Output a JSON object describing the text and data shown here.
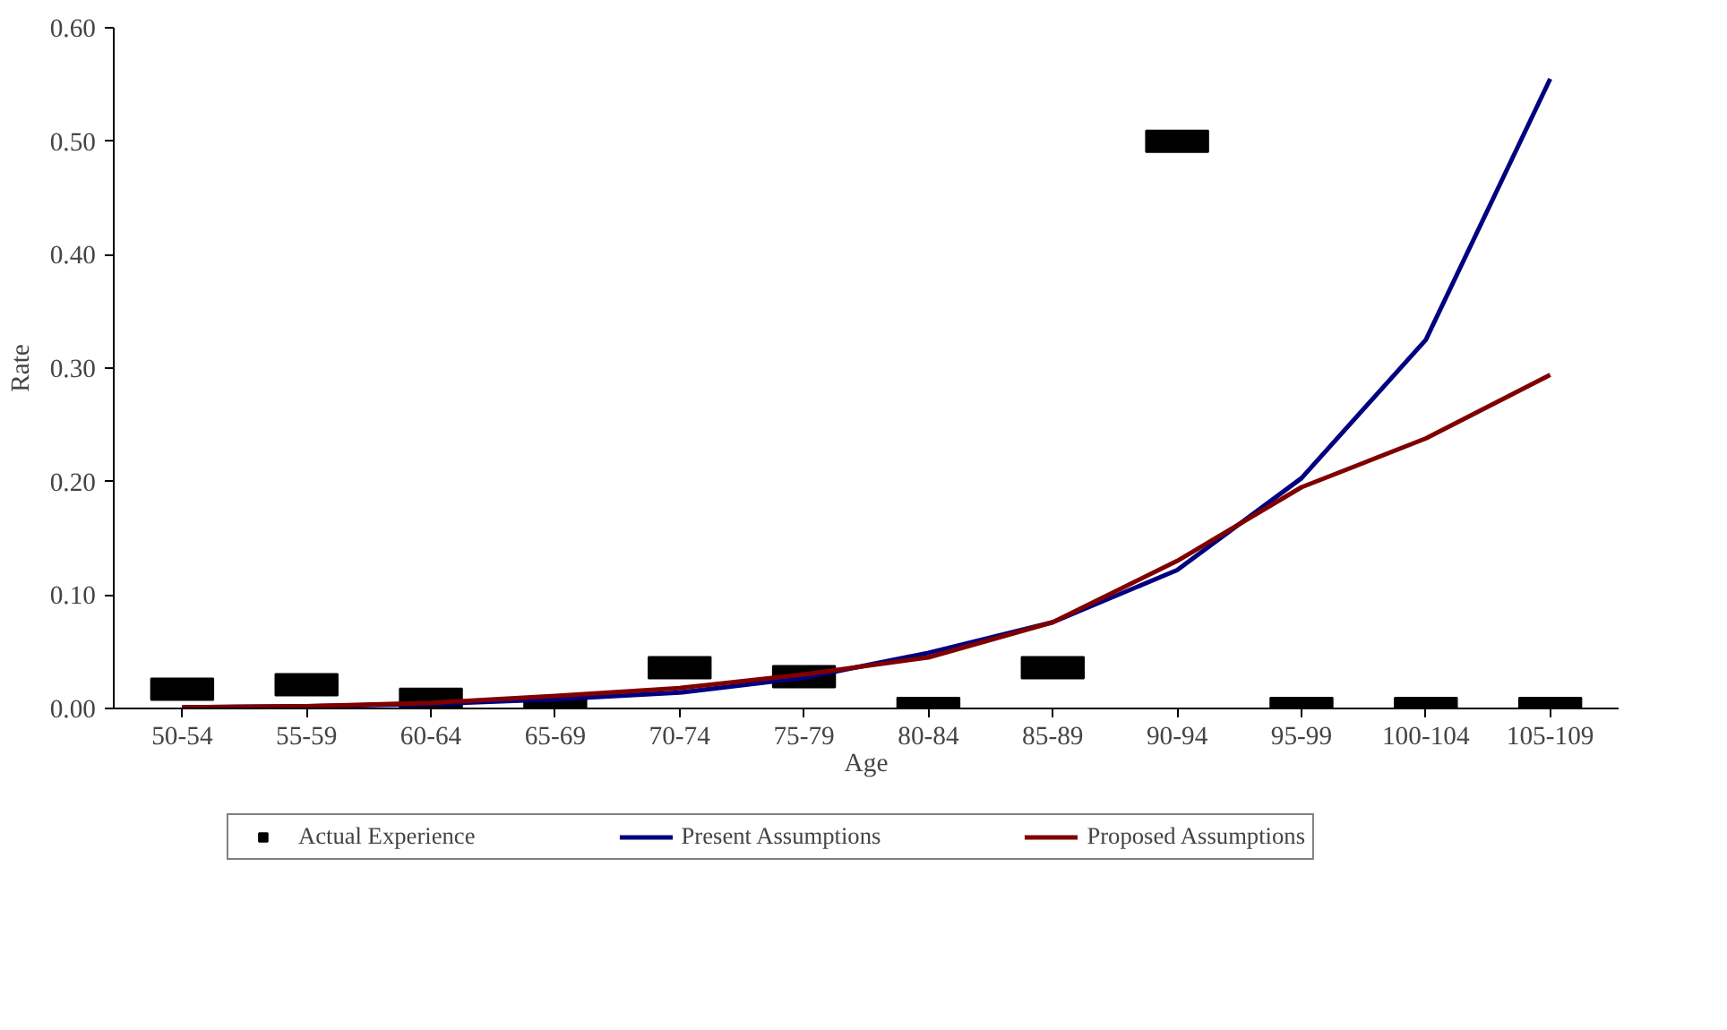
{
  "chart_data": {
    "type": "line",
    "xlabel": "Age",
    "ylabel": "Rate",
    "categories": [
      "50-54",
      "55-59",
      "60-64",
      "65-69",
      "70-74",
      "75-79",
      "80-84",
      "85-89",
      "90-94",
      "95-99",
      "100-104",
      "105-109"
    ],
    "series": [
      {
        "name": "Actual Experience",
        "type": "scatter",
        "marker": "square",
        "color": "#000000",
        "values": [
          0.017,
          0.021,
          0.008,
          0.0,
          0.036,
          0.028,
          0.0,
          0.036,
          0.5,
          0.0,
          0.0,
          0.0
        ]
      },
      {
        "name": "Present Assumptions",
        "color": "#000080",
        "values": [
          0.001,
          0.002,
          0.004,
          0.008,
          0.014,
          0.027,
          0.049,
          0.076,
          0.122,
          0.203,
          0.325,
          0.555
        ]
      },
      {
        "name": "Proposed Assumptions",
        "color": "#800000",
        "values": [
          0.001,
          0.002,
          0.005,
          0.011,
          0.018,
          0.03,
          0.045,
          0.076,
          0.13,
          0.195,
          0.238,
          0.294
        ]
      }
    ],
    "ylim": [
      0,
      0.6
    ],
    "yticks": [
      {
        "value": 0,
        "label": "0.00"
      },
      {
        "value": 0.1,
        "label": "0.10"
      },
      {
        "value": 0.2,
        "label": "0.20"
      },
      {
        "value": 0.3,
        "label": "0.30"
      },
      {
        "value": 0.4,
        "label": "0.40"
      },
      {
        "value": 0.5,
        "label": "0.50"
      },
      {
        "value": 0.6,
        "label": "0.60"
      }
    ],
    "grid": false,
    "legend": "bottom",
    "line_style": "solid"
  }
}
